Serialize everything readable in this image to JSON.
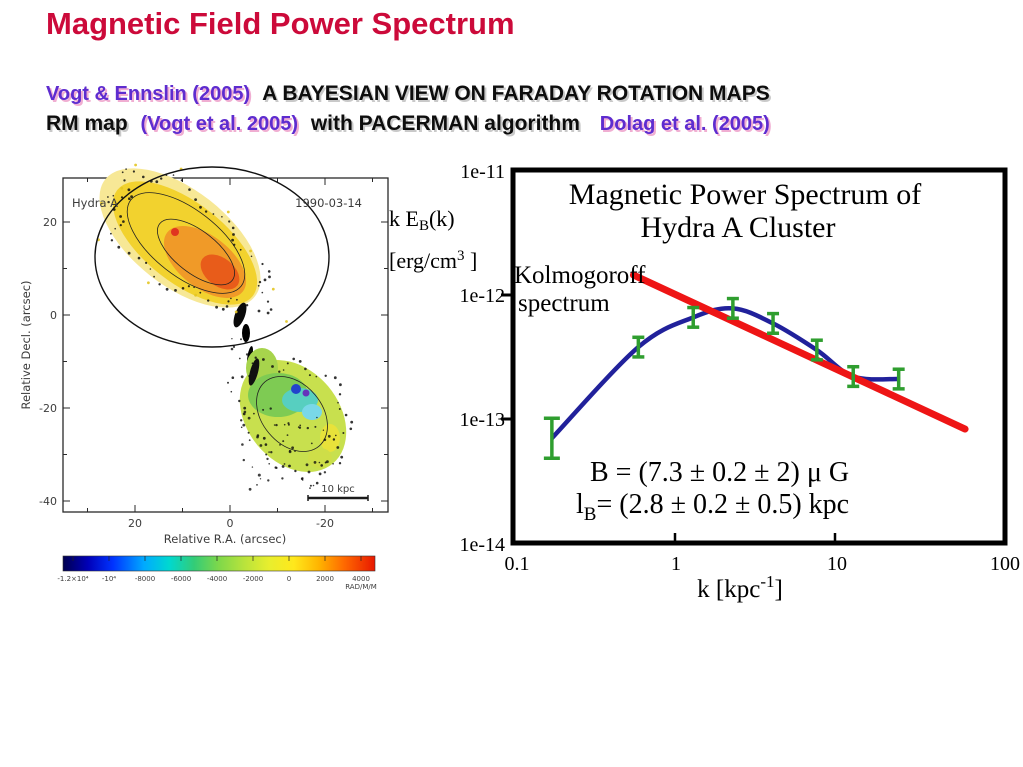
{
  "slide": {
    "title": "Magnetic Field Power Spectrum",
    "line1_ref": "Vogt & Ennslin (2005)",
    "line1_text": "A BAYESIAN VIEW ON FARADAY ROTATION MAPS",
    "line2_bold1": "RM map",
    "line2_ref1": "(Vogt et al. 2005)",
    "line2_bold2": "with PACERMAN algorithm",
    "line2_ref2": "Dolag et al. (2005)"
  },
  "rm_map": {
    "source_label": "Hydra A",
    "date_label": "1990-03-14",
    "xlabel": "Relative R.A. (arcsec)",
    "ylabel": "Relative Decl. (arcsec)",
    "x_ticks": [
      "20",
      "0",
      "-20"
    ],
    "y_ticks": [
      "20",
      "0",
      "-20",
      "-40"
    ],
    "scalebar_label": "10 kpc",
    "colorbar": {
      "tick_labels": [
        "-1.2×10⁴",
        "-10⁴",
        "-8000",
        "-6000",
        "-4000",
        "-2000",
        "0",
        "2000",
        "4000"
      ],
      "unit": "RAD/M/M"
    }
  },
  "chart_data": {
    "type": "line",
    "title": "Magnetic Power Spectrum of Hydra A Cluster",
    "title_lines": [
      "Magnetic Power Spectrum of",
      "Hydra A Cluster"
    ],
    "title_color": "#1a1acc",
    "xlabel": "k [kpc⁻¹]",
    "xlabel_parts": [
      "k  [kpc",
      "-1",
      "]"
    ],
    "ylabel": "k E_B(k) [erg/cm³ ]",
    "ylabel_parts": [
      "k E",
      "B",
      "(k)",
      "[erg/cm",
      "3",
      " ]"
    ],
    "xlim": [
      0.1,
      100
    ],
    "ylim": [
      1e-14,
      1e-11
    ],
    "x_tick_labels": [
      "0.1",
      "1",
      "10",
      "100"
    ],
    "y_tick_labels": [
      "1e-11",
      "1e-12",
      "1e-13",
      "1e-14"
    ],
    "x_scale": "log",
    "y_scale": "log",
    "grid": false,
    "series": [
      {
        "name": "Hydra A power spectrum",
        "color": "#21219b",
        "x": [
          0.17,
          0.59,
          1.3,
          2.3,
          4.1,
          7.7,
          13,
          25
        ],
        "y": [
          7e-14,
          3.8e-13,
          6.6e-13,
          7.8e-13,
          5.9e-13,
          3.6e-13,
          2.2e-13,
          2.1e-13
        ],
        "err_factor": [
          1.45,
          1.2,
          1.2,
          1.2,
          1.2,
          1.2,
          1.2,
          1.2
        ],
        "err_color": "#2f9e2f"
      },
      {
        "name": "Kolmogoroff spectrum",
        "color": "#ee1515",
        "x": [
          0.55,
          65
        ],
        "y": [
          1.45e-12,
          8.3e-14
        ]
      }
    ],
    "kolmogorov_label": [
      "Kolmogoroff",
      "spectrum"
    ],
    "annotations": {
      "b_field": "B = (7.3 ± 0.2 ± 2) μ G",
      "lb_prefix": "l",
      "lb_sub": "B",
      "lb_rest": "= (2.8 ± 0.2 ± 0.5) kpc",
      "color": "#1f8f33"
    }
  }
}
